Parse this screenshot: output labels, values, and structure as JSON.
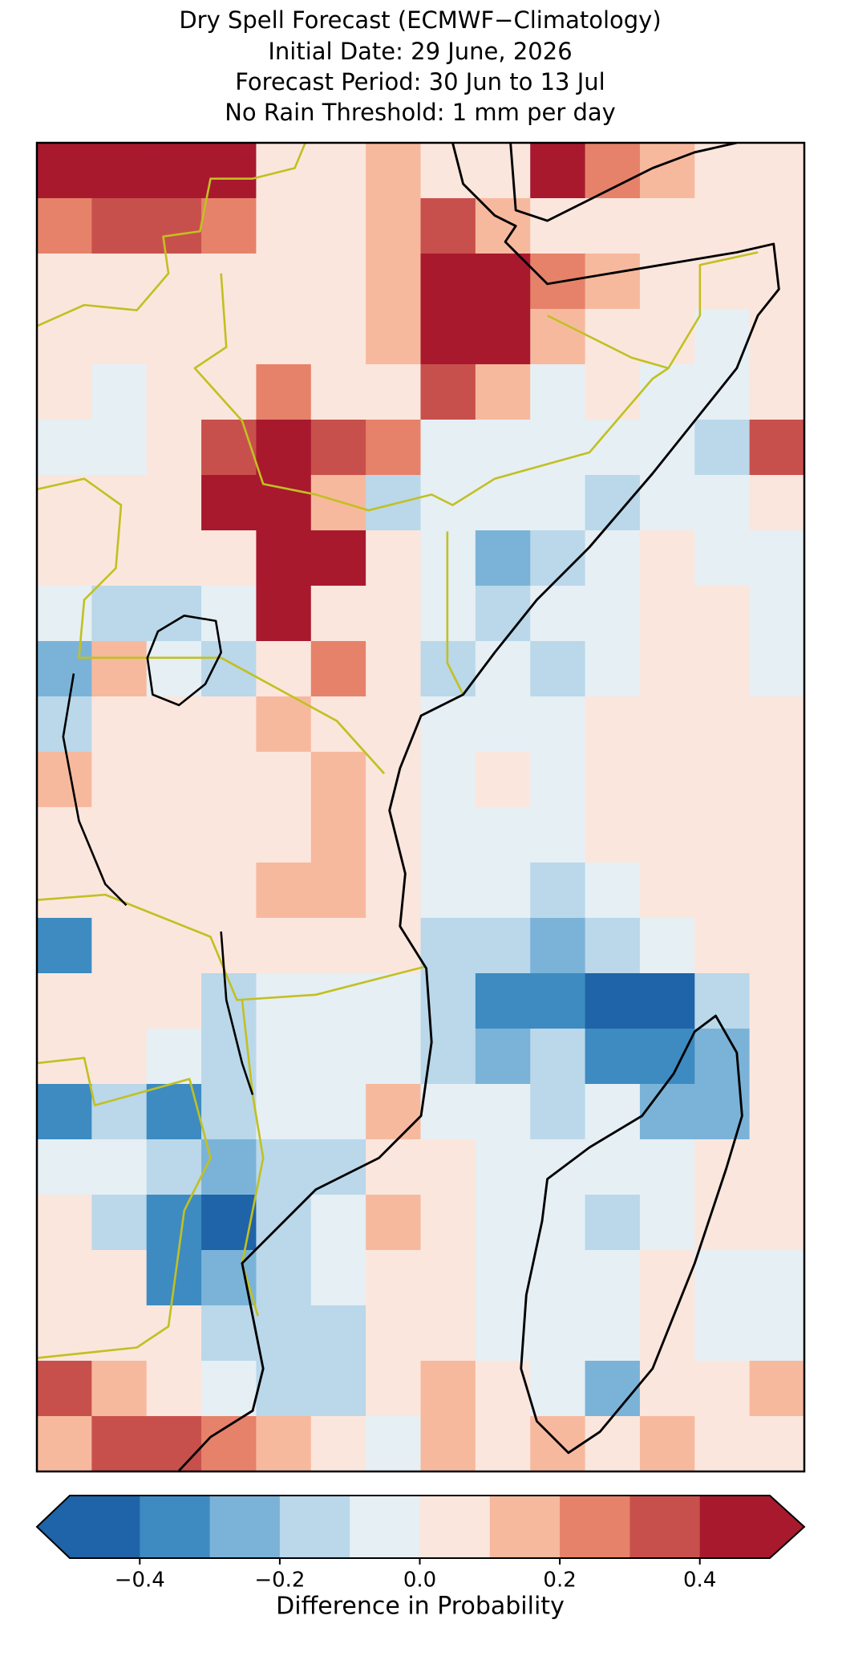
{
  "chart_data": {
    "type": "map",
    "title": [
      "Dry Spell Forecast (ECMWF−Climatology)",
      "Initial Date: 29 June, 2026",
      "Forecast Period: 30 Jun to 13 Jul",
      "No Rain Threshold: 1 mm per day"
    ],
    "values": [
      [
        0.45,
        0.45,
        0.45,
        0.45,
        0.05,
        0.05,
        0.15,
        0.05,
        0.05,
        0.4,
        0.25,
        0.15,
        0.05,
        0.05
      ],
      [
        0.25,
        0.35,
        0.35,
        0.25,
        0.05,
        0.05,
        0.15,
        0.35,
        0.15,
        0.05,
        0.05,
        0.05,
        0.05,
        0.05
      ],
      [
        0.05,
        0.05,
        0.05,
        0.05,
        0.05,
        0.05,
        0.15,
        0.45,
        0.45,
        0.25,
        0.15,
        0.05,
        0.05,
        0.05
      ],
      [
        0.05,
        0.05,
        0.05,
        0.05,
        0.05,
        0.05,
        0.15,
        0.45,
        0.45,
        0.15,
        0.05,
        0.05,
        -0.05,
        0.05
      ],
      [
        0.05,
        -0.05,
        0.05,
        0.05,
        0.25,
        0.05,
        0.05,
        0.35,
        0.15,
        -0.05,
        0.05,
        -0.05,
        -0.05,
        0.05
      ],
      [
        -0.05,
        -0.05,
        0.05,
        0.35,
        0.45,
        0.35,
        0.25,
        -0.05,
        -0.05,
        -0.05,
        -0.05,
        -0.05,
        -0.15,
        0.35
      ],
      [
        0.05,
        0.05,
        0.05,
        0.45,
        0.45,
        0.15,
        -0.15,
        -0.05,
        -0.05,
        -0.05,
        -0.15,
        -0.05,
        -0.05,
        0.05
      ],
      [
        0.05,
        0.05,
        0.05,
        0.05,
        0.45,
        0.45,
        0.05,
        -0.05,
        -0.25,
        -0.15,
        -0.05,
        0.05,
        -0.05,
        -0.05
      ],
      [
        -0.05,
        -0.15,
        -0.15,
        -0.05,
        0.45,
        0.05,
        0.05,
        -0.05,
        -0.15,
        -0.05,
        -0.05,
        0.05,
        0.05,
        -0.05
      ],
      [
        -0.25,
        0.15,
        -0.05,
        -0.15,
        0.05,
        0.25,
        0.05,
        -0.15,
        -0.05,
        -0.15,
        -0.05,
        0.05,
        0.05,
        -0.05
      ],
      [
        -0.15,
        0.05,
        0.05,
        0.05,
        0.15,
        0.05,
        0.05,
        -0.05,
        -0.05,
        -0.05,
        0.05,
        0.05,
        0.05,
        0.05
      ],
      [
        0.15,
        0.05,
        0.05,
        0.05,
        0.05,
        0.15,
        0.05,
        -0.05,
        0.05,
        -0.05,
        0.05,
        0.05,
        0.05,
        0.05
      ],
      [
        0.05,
        0.05,
        0.05,
        0.05,
        0.05,
        0.15,
        0.05,
        -0.05,
        -0.05,
        -0.05,
        0.05,
        0.05,
        0.05,
        0.05
      ],
      [
        0.05,
        0.05,
        0.05,
        0.05,
        0.15,
        0.15,
        0.05,
        -0.05,
        -0.05,
        -0.15,
        -0.05,
        0.05,
        0.05,
        0.05
      ],
      [
        -0.35,
        0.05,
        0.05,
        0.05,
        0.05,
        0.05,
        0.05,
        -0.15,
        -0.15,
        -0.25,
        -0.15,
        -0.05,
        0.05,
        0.05
      ],
      [
        0.05,
        0.05,
        0.05,
        -0.15,
        -0.05,
        -0.05,
        -0.05,
        -0.15,
        -0.35,
        -0.35,
        -0.45,
        -0.45,
        -0.15,
        0.05
      ],
      [
        0.05,
        0.05,
        -0.05,
        -0.15,
        -0.05,
        -0.05,
        -0.05,
        -0.15,
        -0.25,
        -0.15,
        -0.35,
        -0.35,
        -0.25,
        0.05
      ],
      [
        -0.35,
        -0.15,
        -0.35,
        -0.15,
        -0.05,
        -0.05,
        0.15,
        -0.05,
        -0.05,
        -0.15,
        -0.05,
        -0.25,
        -0.25,
        0.05
      ],
      [
        -0.05,
        -0.05,
        -0.15,
        -0.25,
        -0.15,
        -0.15,
        0.05,
        0.05,
        -0.05,
        -0.05,
        -0.05,
        -0.05,
        0.05,
        0.05
      ],
      [
        0.05,
        -0.15,
        -0.35,
        -0.45,
        -0.15,
        -0.05,
        0.15,
        0.05,
        -0.05,
        -0.05,
        -0.15,
        -0.05,
        0.05,
        0.05
      ],
      [
        0.05,
        0.05,
        -0.35,
        -0.25,
        -0.15,
        -0.05,
        0.05,
        0.05,
        -0.05,
        -0.05,
        -0.05,
        0.05,
        -0.05,
        -0.05
      ],
      [
        0.05,
        0.05,
        0.05,
        -0.15,
        -0.15,
        -0.15,
        0.05,
        0.05,
        -0.05,
        -0.05,
        -0.05,
        0.05,
        -0.05,
        -0.05
      ],
      [
        0.35,
        0.15,
        0.05,
        -0.05,
        -0.15,
        -0.15,
        0.05,
        0.15,
        0.05,
        -0.05,
        -0.25,
        0.05,
        0.05,
        0.15
      ],
      [
        0.15,
        0.35,
        0.35,
        0.25,
        0.15,
        0.05,
        -0.05,
        0.15,
        0.05,
        0.15,
        0.05,
        0.15,
        0.05,
        0.05
      ]
    ],
    "colorbar": {
      "levels": [
        -0.5,
        -0.4,
        -0.3,
        -0.2,
        -0.1,
        0,
        0.1,
        0.2,
        0.3,
        0.4,
        0.5
      ],
      "colors": [
        "#1f63a8",
        "#3d8bc1",
        "#7bb3d8",
        "#bad8ea",
        "#e6eff4",
        "#fbe6dd",
        "#f7b99e",
        "#e6826a",
        "#c8504c",
        "#a8192e"
      ],
      "extend": "both",
      "ticks": [
        {
          "value": -0.4,
          "label": "−0.4"
        },
        {
          "value": -0.2,
          "label": "−0.2"
        },
        {
          "value": 0,
          "label": "0.0"
        },
        0.2,
        0.4
      ],
      "label": "Difference in Probability"
    }
  }
}
